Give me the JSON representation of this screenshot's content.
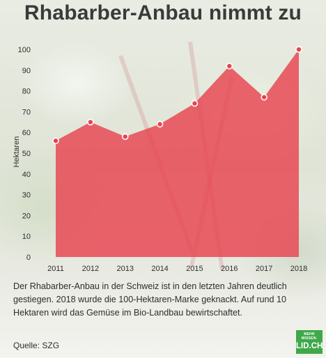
{
  "title": "Rhabarber-Anbau nimmt zu",
  "description": "Der Rhabarber-Anbau in der Schweiz ist in den letzten Jahren deutlich gestiegen. 2018 wurde die 100-Hektaren-Marke geknackt. Auf rund 10 Hektaren wird das Gemüse im Bio-Landbau bewirtschaftet.",
  "source": "Quelle: SZG",
  "logo": {
    "top": "MEHR WISSEN:",
    "bottom": "LID.CH"
  },
  "colors": {
    "area": "#e8434f",
    "point": "#e8434f",
    "logo": "#3fa84a"
  },
  "chart_data": {
    "type": "area",
    "title": "",
    "xlabel": "",
    "ylabel": "Hektaren",
    "categories": [
      "2011",
      "2012",
      "2013",
      "2014",
      "2015",
      "2016",
      "2017",
      "2018"
    ],
    "values": [
      56,
      65,
      58,
      64,
      74,
      92,
      77,
      100
    ],
    "ylim": [
      0,
      100
    ],
    "yticks": [
      0,
      10,
      20,
      30,
      40,
      50,
      60,
      70,
      80,
      90,
      100
    ],
    "grid": false,
    "legend": "none"
  }
}
